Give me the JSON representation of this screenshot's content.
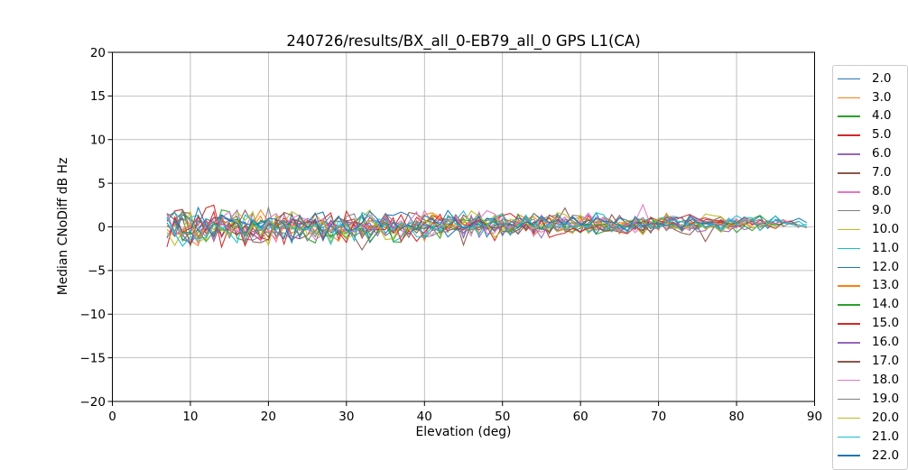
{
  "figure": {
    "background": "#ffffff",
    "spine_color": "#000000",
    "tick_color": "#000000"
  },
  "chart_data": {
    "type": "line",
    "title": "240726/results/BX_all_0-EB79_all_0 GPS L1(CA)",
    "xlabel": "Elevation (deg)",
    "ylabel": "Median CNoDiff dB Hz",
    "xlim": [
      0,
      90
    ],
    "ylim": [
      -20,
      20
    ],
    "x_ticks": [
      0,
      10,
      20,
      30,
      40,
      50,
      60,
      70,
      80,
      90
    ],
    "y_ticks": [
      -20,
      -15,
      -10,
      -5,
      0,
      5,
      10,
      15,
      20
    ],
    "grid": true,
    "grid_color": "#b0b0b0",
    "legend_position": "right-outside",
    "legend_clipped_at_bottom": true,
    "x_step_deg": 1,
    "data_note": "Per-satellite CN0-difference residual lines sampled every 1 deg of elevation from ~7 to ~89 deg. All series are noise centered near 0 dB-Hz: spread about +/-2.5 (occasional outliers +3.9 / -4.1) below 20 deg elevation, narrowing to about +/-1 with a slight positive bias (~+0.5) above 70 deg.",
    "noise_envelope": {
      "x_start": 7,
      "x_end": 89,
      "amp_at_start": 1.9,
      "amp_at_end": 0.65,
      "bias_at_start": -0.1,
      "bias_at_end": 0.45,
      "outlier_min": -4.2,
      "outlier_max": 4.2
    },
    "series": [
      {
        "label": "2.0",
        "color": "#1f77b4",
        "x_start": 7,
        "x_end": 89,
        "seed": 3
      },
      {
        "label": "3.0",
        "color": "#ff7f0e",
        "x_start": 7,
        "x_end": 82,
        "seed": 14
      },
      {
        "label": "4.0",
        "color": "#2ca02c",
        "x_start": 8,
        "x_end": 86,
        "seed": 25
      },
      {
        "label": "5.0",
        "color": "#d62728",
        "x_start": 7,
        "x_end": 79,
        "seed": 36
      },
      {
        "label": "6.0",
        "color": "#9467bd",
        "x_start": 7,
        "x_end": 84,
        "seed": 47
      },
      {
        "label": "7.0",
        "color": "#8c564b",
        "x_start": 7,
        "x_end": 88,
        "seed": 58
      },
      {
        "label": "8.0",
        "color": "#e377c2",
        "x_start": 8,
        "x_end": 81,
        "seed": 69
      },
      {
        "label": "9.0",
        "color": "#7f7f7f",
        "x_start": 7,
        "x_end": 85,
        "seed": 80
      },
      {
        "label": "10.0",
        "color": "#bcbd22",
        "x_start": 7,
        "x_end": 83,
        "seed": 91
      },
      {
        "label": "11.0",
        "color": "#17becf",
        "x_start": 7,
        "x_end": 89,
        "seed": 102
      },
      {
        "label": "12.0",
        "color": "#1f77b4",
        "x_start": 7,
        "x_end": 80,
        "seed": 113
      },
      {
        "label": "13.0",
        "color": "#ff7f0e",
        "x_start": 8,
        "x_end": 78,
        "seed": 124
      },
      {
        "label": "14.0",
        "color": "#2ca02c",
        "x_start": 7,
        "x_end": 86,
        "seed": 135
      },
      {
        "label": "15.0",
        "color": "#d62728",
        "x_start": 7,
        "x_end": 88,
        "seed": 146
      },
      {
        "label": "16.0",
        "color": "#9467bd",
        "x_start": 7,
        "x_end": 82,
        "seed": 157
      },
      {
        "label": "17.0",
        "color": "#8c564b",
        "x_start": 8,
        "x_end": 84,
        "seed": 168
      },
      {
        "label": "18.0",
        "color": "#e377c2",
        "x_start": 7,
        "x_end": 87,
        "seed": 179
      },
      {
        "label": "19.0",
        "color": "#7f7f7f",
        "x_start": 7,
        "x_end": 89,
        "seed": 190
      },
      {
        "label": "20.0",
        "color": "#bcbd22",
        "x_start": 7,
        "x_end": 85,
        "seed": 201
      },
      {
        "label": "21.0",
        "color": "#17becf",
        "x_start": 7,
        "x_end": 89,
        "seed": 212
      },
      {
        "label": "22.0",
        "color": "#1f77b4",
        "x_start": 8,
        "x_end": 77,
        "seed": 223
      }
    ]
  }
}
